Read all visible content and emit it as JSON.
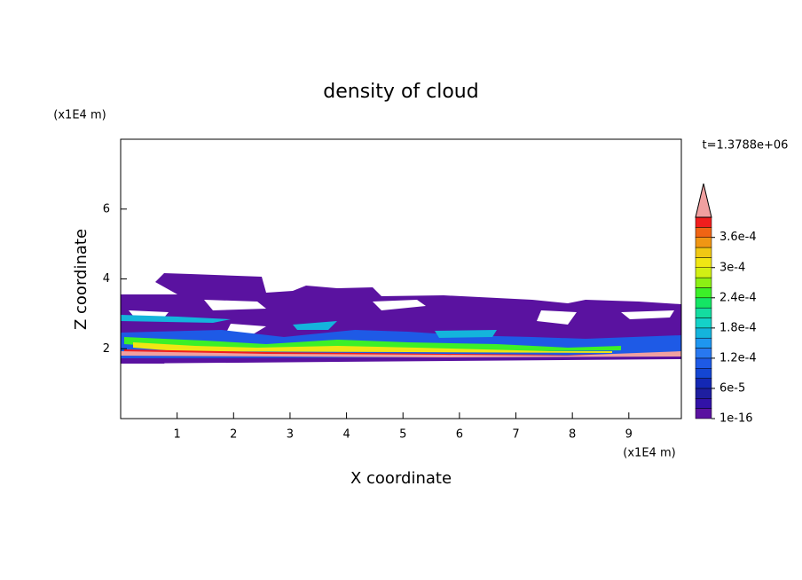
{
  "chart_data": {
    "type": "contour",
    "title": "density of cloud",
    "x_label": "X coordinate",
    "y_label": "Z coordinate",
    "x_unit": "(x1E4 m)",
    "y_unit": "(x1E4 m)",
    "annotation": "t=1.3788e+06",
    "xlim": [
      0,
      9.93
    ],
    "ylim": [
      0,
      8
    ],
    "xticks": [
      1,
      2,
      3,
      4,
      5,
      6,
      7,
      8,
      9
    ],
    "yticks": [
      2,
      4,
      6
    ],
    "colorbar": {
      "levels": [
        1e-16,
        2e-05,
        4e-05,
        6e-05,
        8e-05,
        0.0001,
        0.00012,
        0.00014,
        0.00016,
        0.00018,
        0.0002,
        0.00022,
        0.00024,
        0.00026,
        0.00028,
        0.0003,
        0.00032,
        0.00034,
        0.00036,
        0.00038,
        0.0004
      ],
      "colors": [
        "#5a12a0",
        "#3212a8",
        "#1e1ea0",
        "#1428b4",
        "#1446d2",
        "#1e5ae6",
        "#2878f0",
        "#1e96f0",
        "#14b4dc",
        "#14d2c8",
        "#14dca0",
        "#14e664",
        "#3cf028",
        "#8cf014",
        "#d2f014",
        "#f0e614",
        "#f0c814",
        "#f09614",
        "#f06414",
        "#f01e1e"
      ],
      "over_color": "#f0a0a0",
      "ticks": [
        1e-16,
        {
          "value": 6e-05,
          "label": "6e-5"
        },
        {
          "value": 0.00012,
          "label": "1.2e-4"
        },
        {
          "value": 0.00018,
          "label": "1.8e-4"
        },
        {
          "value": 0.00024,
          "label": "2.4e-4"
        },
        {
          "value": 0.0003,
          "label": "3e-4"
        },
        {
          "value": 0.00036,
          "label": "3.6e-4"
        }
      ]
    }
  }
}
